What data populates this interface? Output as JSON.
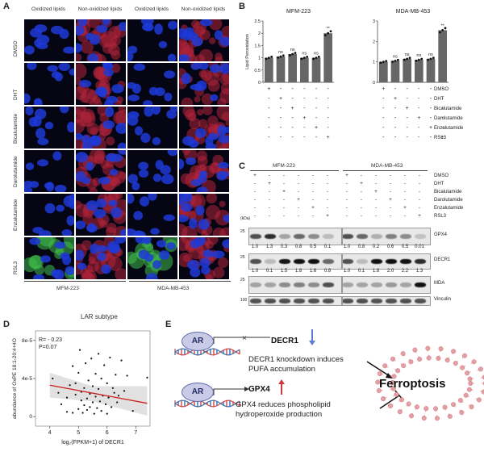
{
  "panelA": {
    "label": "A",
    "col_headers": [
      "Oxidized lipids",
      "Non-oxidized lipids",
      "Oxidized lipids",
      "Non-oxidized lipids"
    ],
    "rows": [
      "DMSO",
      "DHT",
      "Bicalutamide",
      "Darolutamide",
      "Enzalutamide",
      "RSL3"
    ],
    "cell_lines": [
      "MFM-223",
      "MDA-MB-453"
    ]
  },
  "panelB": {
    "label": "B",
    "ylabel": "Lipid Peroxidation",
    "treatments": [
      "DMSO",
      "DHT",
      "Bicalutamide",
      "Darolutamide",
      "Enzalutamide",
      "RSL3"
    ],
    "signs": [
      [
        "+",
        "-",
        "-",
        "-",
        "-",
        "-"
      ],
      [
        "-",
        "+",
        "-",
        "-",
        "-",
        "-"
      ],
      [
        "-",
        "-",
        "+",
        "-",
        "-",
        "-"
      ],
      [
        "-",
        "-",
        "-",
        "+",
        "-",
        "-"
      ],
      [
        "-",
        "-",
        "-",
        "-",
        "+",
        "-"
      ],
      [
        "-",
        "-",
        "-",
        "-",
        "-",
        "+"
      ]
    ]
  },
  "chart_data": [
    {
      "type": "bar",
      "title": "MFM-223",
      "ylabel": "Lipid Peroxidation",
      "categories": [
        "DMSO",
        "DHT",
        "Bicalutamide",
        "Darolutamide",
        "Enzalutamide",
        "RSL3"
      ],
      "values": [
        1.0,
        1.05,
        1.15,
        1.0,
        1.0,
        2.0
      ],
      "annotations": [
        "",
        "ns",
        "ns",
        "ns",
        "ns",
        "**"
      ],
      "ylim": [
        0,
        2.5
      ],
      "yticks": [
        "0",
        "0.5",
        "1",
        "1.5",
        "2",
        "2.5"
      ]
    },
    {
      "type": "bar",
      "title": "MDA-MB-453",
      "ylabel": "",
      "categories": [
        "DMSO",
        "DHT",
        "Bicalutamide",
        "Darolutamide",
        "Enzalutamide",
        "RSL3"
      ],
      "values": [
        1.0,
        1.05,
        1.15,
        1.1,
        1.15,
        2.55
      ],
      "annotations": [
        "",
        "ns",
        "ns",
        "ns",
        "ns",
        "**"
      ],
      "ylim": [
        0,
        3
      ],
      "yticks": [
        "0",
        "1",
        "2",
        "3"
      ]
    },
    {
      "type": "scatter",
      "title": "LAR subtype",
      "xlabel": "log₂(FPKM+1) of DECR1",
      "ylabel": "abundance of OxPE 18:1-20:4+4O",
      "xlim": [
        3.5,
        7.5
      ],
      "ylim": [
        -1e-05,
        9e-05
      ],
      "xticks": [
        "4",
        "5",
        "6",
        "7"
      ],
      "yticks": [
        "0",
        "4e-5",
        "8e-5"
      ],
      "points": [
        [
          4.1,
          4e-05
        ],
        [
          4.3,
          2.5e-05
        ],
        [
          4.4,
          1.3e-05
        ],
        [
          4.6,
          2e-05
        ],
        [
          4.6,
          5e-06
        ],
        [
          4.7,
          3.3e-05
        ],
        [
          4.8,
          5.3e-05
        ],
        [
          4.8,
          4e-06
        ],
        [
          4.9,
          2.3e-05
        ],
        [
          4.9,
          3.5e-05
        ],
        [
          5.0,
          8e-06
        ],
        [
          5.0,
          4.6e-05
        ],
        [
          5.05,
          7e-05
        ],
        [
          5.1,
          1.7e-05
        ],
        [
          5.1,
          2.6e-05
        ],
        [
          5.15,
          4e-06
        ],
        [
          5.2,
          3e-05
        ],
        [
          5.2,
          1.2e-05
        ],
        [
          5.25,
          5.6e-05
        ],
        [
          5.3,
          1.9e-05
        ],
        [
          5.3,
          7e-06
        ],
        [
          5.35,
          3.8e-05
        ],
        [
          5.4,
          2.4e-05
        ],
        [
          5.4,
          1e-05
        ],
        [
          5.45,
          6.1e-05
        ],
        [
          5.5,
          3.2e-05
        ],
        [
          5.5,
          1.5e-05
        ],
        [
          5.55,
          3e-06
        ],
        [
          5.6,
          4.5e-05
        ],
        [
          5.6,
          2.1e-05
        ],
        [
          5.65,
          9e-06
        ],
        [
          5.7,
          6.6e-05
        ],
        [
          5.7,
          2.9e-05
        ],
        [
          5.75,
          1.6e-05
        ],
        [
          5.8,
          4e-05
        ],
        [
          5.8,
          6e-06
        ],
        [
          5.85,
          2.2e-05
        ],
        [
          5.9,
          5.4e-05
        ],
        [
          5.95,
          1.3e-05
        ],
        [
          6.0,
          3.5e-05
        ],
        [
          6.0,
          3e-06
        ],
        [
          6.05,
          2e-05
        ],
        [
          6.1,
          6.2e-05
        ],
        [
          6.15,
          1e-05
        ],
        [
          6.2,
          3e-05
        ],
        [
          6.25,
          2.5e-05
        ],
        [
          6.3,
          4.4e-05
        ],
        [
          6.35,
          1.5e-05
        ],
        [
          6.4,
          2.2e-05
        ],
        [
          6.5,
          5.9e-05
        ],
        [
          6.6,
          2.7e-05
        ],
        [
          6.7,
          4.3e-05
        ],
        [
          6.9,
          6e-06
        ],
        [
          7.4,
          4.1e-05
        ]
      ],
      "fit": [
        [
          4.0,
          3.3e-05
        ],
        [
          7.4,
          1.4e-05
        ]
      ],
      "annotations": [
        "R= - 0.23",
        "P=0.07"
      ]
    }
  ],
  "panelC": {
    "label": "C",
    "cell_lines": [
      "MFM-223",
      "MDA-MB-453"
    ],
    "kda": "(kDa)",
    "markers": [
      "25",
      "25",
      "25",
      "100"
    ],
    "proteins": [
      "GPX4",
      "DECR1",
      "MDA",
      "Vinculin"
    ],
    "gpx4_values": [
      [
        "1.0",
        "1.3",
        "0.3",
        "0.8",
        "0.5",
        "0.1"
      ],
      [
        "1.0",
        "0.8",
        "0.2",
        "0.6",
        "0.5",
        "0.01"
      ]
    ],
    "decr1_values": [
      [
        "1.0",
        "0.1",
        "1.5",
        "1.8",
        "1.6",
        "0.8"
      ],
      [
        "1.0",
        "0.1",
        "1.8",
        "2.0",
        "2.2",
        "1.3"
      ]
    ]
  },
  "panelD": {
    "label": "D",
    "title": "LAR subtype",
    "stat_r": "R= - 0.23",
    "stat_p": "P=0.07",
    "xlabel": "log₂(FPKM+1) of DECR1",
    "ylabel": "abundance of OxPE 18:1-20:4+4O"
  },
  "panelE": {
    "label": "E",
    "ar_label": "AR",
    "decr1": "DECR1",
    "decr1_text_1": "DECR1 knockdown induces",
    "decr1_text_2": "PUFA accumulation",
    "gpx4": "GPX4",
    "gpx4_text_1": "GPX4 reduces phospholipid",
    "gpx4_text_2": "hydroperoxide production",
    "ferroptosis": "Ferroptosis",
    "arrow_down_color": "#5a7fd0",
    "arrow_up_color": "#d03a3a"
  },
  "colors": {
    "bar": "#666666",
    "fit_line": "#cc1f1f",
    "ci_band": "#d9d9d9",
    "dapi": "#1f3ad6",
    "red_stain": "#b3243a",
    "green_stain": "#3fbd4a"
  }
}
